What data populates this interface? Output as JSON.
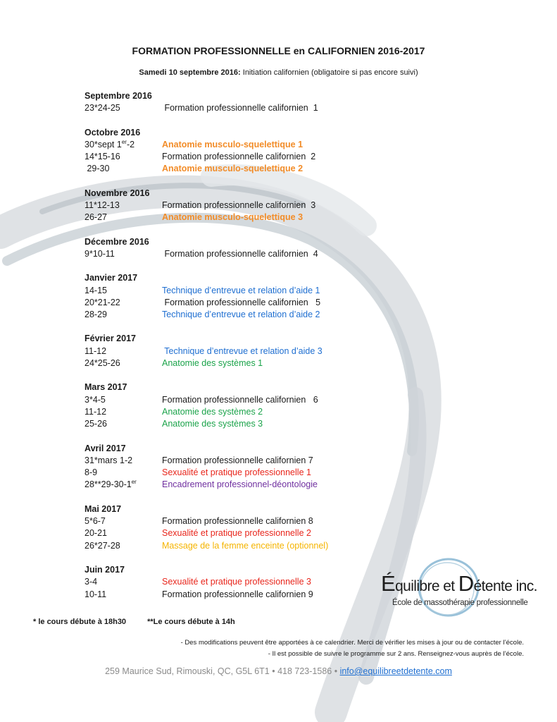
{
  "colors": {
    "orange": "#f28c28",
    "blue": "#1f6fd1",
    "green": "#1ba34a",
    "red": "#e8261c",
    "purple": "#7030a0",
    "yellow": "#f5b400",
    "black": "#1a1a1a"
  },
  "title": "FORMATION PROFESSIONNELLE en CALIFORNIEN 2016-2017",
  "subtitle": {
    "label": "Samedi 10 septembre 2016:",
    "text": " Initiation californien (obligatoire si pas encore suivi)"
  },
  "months": [
    {
      "name": "Septembre 2016",
      "rows": [
        {
          "date": "23*24-25",
          "course": " Formation professionnelle californien  1",
          "color": "black"
        }
      ]
    },
    {
      "name": "Octobre 2016",
      "rows": [
        {
          "date": "30*sept 1",
          "sup": "er",
          "date_after": "-2",
          "course": "Anatomie musculo-squelettique 1",
          "color": "orange",
          "bold": true
        },
        {
          "date": "14*15-16",
          "course": "Formation professionnelle californien  2",
          "color": "black"
        },
        {
          "date": " 29-30",
          "course": "Anatomie musculo-squelettique 2",
          "color": "orange",
          "bold": true
        }
      ]
    },
    {
      "name": "Novembre 2016",
      "rows": [
        {
          "date": "11*12-13",
          "course": "Formation professionnelle californien  3",
          "color": "black"
        },
        {
          "date": "26-27",
          "course": "Anatomie musculo-squelettique 3",
          "color": "orange",
          "bold": true
        }
      ]
    },
    {
      "name": "Décembre 2016",
      "rows": [
        {
          "date": "9*10-11",
          "course": " Formation professionnelle californien  4",
          "color": "black"
        }
      ]
    },
    {
      "name": "Janvier 2017",
      "rows": [
        {
          "date": "14-15",
          "course": "Technique d’entrevue et relation d’aide 1",
          "color": "blue"
        },
        {
          "date": "20*21-22",
          "course": " Formation professionnelle californien   5",
          "color": "black"
        },
        {
          "date": "28-29",
          "course": "Technique d’entrevue et relation d’aide 2",
          "color": "blue"
        }
      ]
    },
    {
      "name": "Février 2017",
      "rows": [
        {
          "date": "11-12",
          "course": " Technique d’entrevue et relation d’aide 3",
          "color": "blue"
        },
        {
          "date": "24*25-26",
          "course": "Anatomie des systèmes 1",
          "color": "green"
        }
      ]
    },
    {
      "name": "Mars 2017",
      "rows": [
        {
          "date": "3*4-5",
          "course": "Formation professionnelle californien   6",
          "color": "black"
        },
        {
          "date": "11-12",
          "course": "Anatomie des systèmes 2",
          "color": "green"
        },
        {
          "date": "25-26",
          "course": "Anatomie des systèmes 3",
          "color": "green"
        }
      ]
    },
    {
      "name": "Avril 2017",
      "rows": [
        {
          "date": "31*mars 1-2",
          "course": "Formation professionnelle californien 7",
          "color": "black"
        },
        {
          "date": "8-9",
          "course": "Sexualité et pratique professionnelle 1",
          "color": "red"
        },
        {
          "date": "28**29-30-1",
          "sup": "er",
          "course": "Encadrement professionnel-déontologie",
          "color": "purple"
        }
      ]
    },
    {
      "name": "Mai 2017",
      "rows": [
        {
          "date": "5*6-7",
          "course": "Formation professionnelle californien 8",
          "color": "black"
        },
        {
          "date": "20-21",
          "course": "Sexualité et pratique professionnelle 2",
          "color": "red"
        },
        {
          "date": "26*27-28",
          "course": "Massage de la femme enceinte (optionnel)",
          "color": "yellow"
        }
      ]
    },
    {
      "name": "Juin 2017",
      "rows": [
        {
          "date": "3-4",
          "course": "Sexualité et pratique professionnelle 3",
          "color": "red"
        },
        {
          "date": "10-11",
          "course": "Formation professionnelle californien 9",
          "color": "black"
        }
      ]
    }
  ],
  "footnotes": {
    "single": "* le cours débute à 18h30",
    "double": "**Le cours débute à 14h"
  },
  "notes": [
    "- Des modifications peuvent être apportées à ce calendrier. Merci de vérifier les mises à jour ou de contacter l’école.",
    "- Il est possible de suivre le programme sur 2 ans. Renseignez-vous auprès de l’école."
  ],
  "address": {
    "text": "259 Maurice Sud, Rimouski, QC, G5L 6T1  •  418 723-1586  •  ",
    "email": "info@equilibreetdetente.com"
  },
  "logo": {
    "e_initial": "É",
    "part1": "quilibre et ",
    "d_initial": "D",
    "part2": "étente inc.",
    "tagline": "École de massothérapie professionnelle"
  }
}
